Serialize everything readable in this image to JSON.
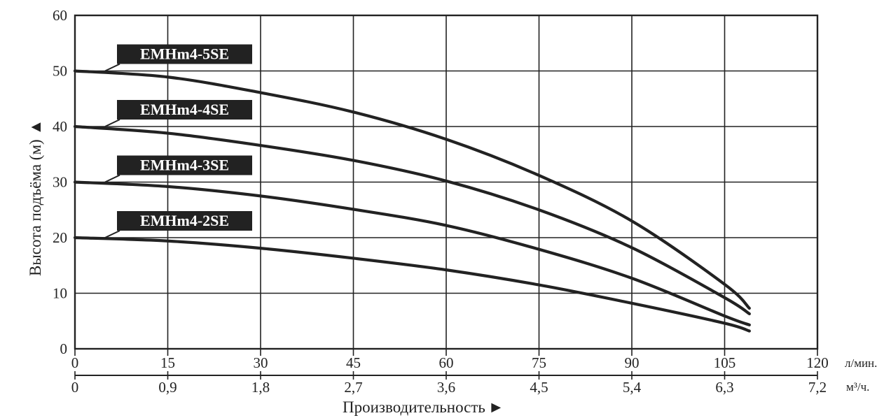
{
  "chart_data": {
    "type": "line",
    "ylabel": "Высота подъёма (м)",
    "ylabel_arrow": "▲",
    "xlabel": "Производительность",
    "xlabel_arrow": "►",
    "x_unit": "л/мин.",
    "x2_unit": "м³/ч.",
    "xlim": [
      0,
      120
    ],
    "ylim": [
      0,
      60
    ],
    "x_ticks": [
      "0",
      "15",
      "30",
      "45",
      "60",
      "75",
      "90",
      "105",
      "120"
    ],
    "x2_ticks": [
      "0",
      "0,9",
      "1,8",
      "2,7",
      "3,6",
      "4,5",
      "5,4",
      "6,3",
      "7,2"
    ],
    "y_ticks": [
      "0",
      "10",
      "20",
      "30",
      "40",
      "50",
      "60"
    ],
    "grid": true,
    "series": [
      {
        "name": "EMHm4-5SE",
        "x": [
          0,
          15,
          30,
          45,
          60,
          75,
          90,
          105,
          109
        ],
        "y": [
          50,
          48.9,
          46.1,
          42.6,
          37.7,
          31.2,
          23,
          11.6,
          7.3
        ]
      },
      {
        "name": "EMHm4-4SE",
        "x": [
          0,
          15,
          30,
          45,
          60,
          75,
          90,
          105,
          109
        ],
        "y": [
          40,
          38.8,
          36.6,
          33.9,
          30.2,
          25,
          18.2,
          9.2,
          6.3
        ]
      },
      {
        "name": "EMHm4-3SE",
        "x": [
          0,
          15,
          30,
          45,
          60,
          75,
          90,
          105,
          109
        ],
        "y": [
          30,
          29.2,
          27.5,
          25.1,
          22.2,
          17.9,
          12.7,
          5.9,
          4.3
        ]
      },
      {
        "name": "EMHm4-2SE",
        "x": [
          0,
          15,
          30,
          45,
          60,
          75,
          90,
          105,
          109
        ],
        "y": [
          20,
          19.4,
          18.1,
          16.3,
          14.2,
          11.5,
          8.2,
          4.6,
          3.2
        ]
      }
    ],
    "colors": {
      "line": "#222222",
      "grid": "#222222",
      "label_bg": "#222222",
      "label_text": "#ffffff"
    }
  }
}
